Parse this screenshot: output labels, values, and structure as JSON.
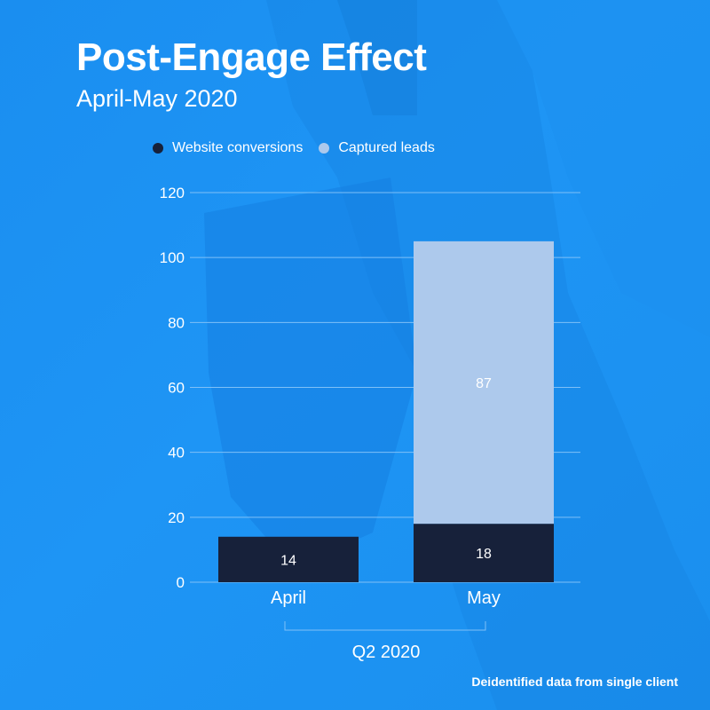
{
  "title": "Post-Engage Effect",
  "subtitle": "April-May 2020",
  "footnote": "Deidentified data from single client",
  "colors": {
    "background": "#1a8ef0",
    "website_conversions": "#17213a",
    "captured_leads": "#adc9ec",
    "gridline": "#7fc0f7",
    "text": "#ffffff"
  },
  "chart_data": {
    "type": "bar",
    "stacked": true,
    "categories": [
      "April",
      "May"
    ],
    "group_label": "Q2 2020",
    "series": [
      {
        "name": "Website conversions",
        "values": [
          14,
          18
        ]
      },
      {
        "name": "Captured leads",
        "values": [
          0,
          87
        ]
      }
    ],
    "data_labels": [
      {
        "series": 0,
        "category": 0,
        "text": "14"
      },
      {
        "series": 0,
        "category": 1,
        "text": "18"
      },
      {
        "series": 1,
        "category": 1,
        "text": "87"
      }
    ],
    "ylim": [
      0,
      120
    ],
    "yticks": [
      0,
      20,
      40,
      60,
      80,
      100,
      120
    ],
    "grid": true,
    "legend_position": "top"
  }
}
